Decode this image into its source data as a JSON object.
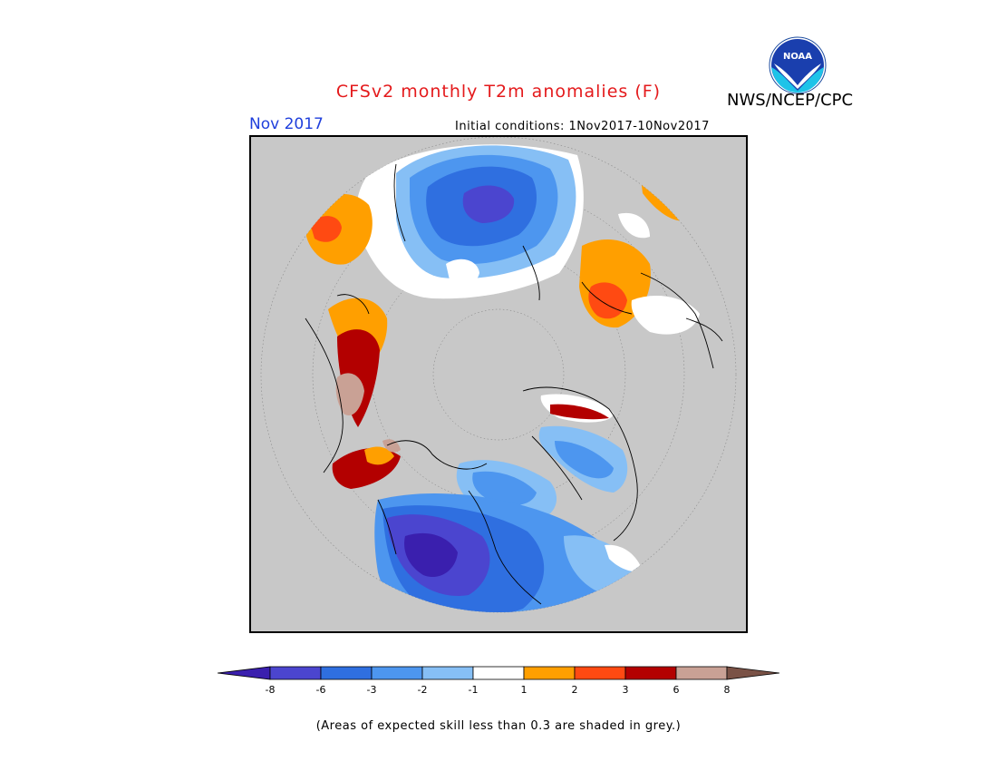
{
  "header": {
    "title": "CFSv2 monthly T2m anomalies (F)",
    "org": "NWS/NCEP/CPC",
    "logo_text": "NOAA",
    "period": "Nov 2017",
    "initial_conditions": "Initial conditions: 1Nov2017-10Nov2017"
  },
  "legend": {
    "bins": [
      {
        "color": "#3a1fae"
      },
      {
        "color": "#4b45cf"
      },
      {
        "color": "#2f6fe0"
      },
      {
        "color": "#4d96ef"
      },
      {
        "color": "#86bff5"
      },
      {
        "color": "#ffffff"
      },
      {
        "color": "#ff9f00"
      },
      {
        "color": "#ff4a12"
      },
      {
        "color": "#b30000"
      },
      {
        "color": "#c9a195"
      },
      {
        "color": "#7a5246"
      }
    ],
    "tick_labels": [
      "-8",
      "-6",
      "-3",
      "-2",
      "-1",
      "1",
      "2",
      "3",
      "6",
      "8"
    ],
    "no_skill_color": "#c8c8c8"
  },
  "footnote": "(Areas of expected skill less than 0.3 are shaded in grey.)"
}
